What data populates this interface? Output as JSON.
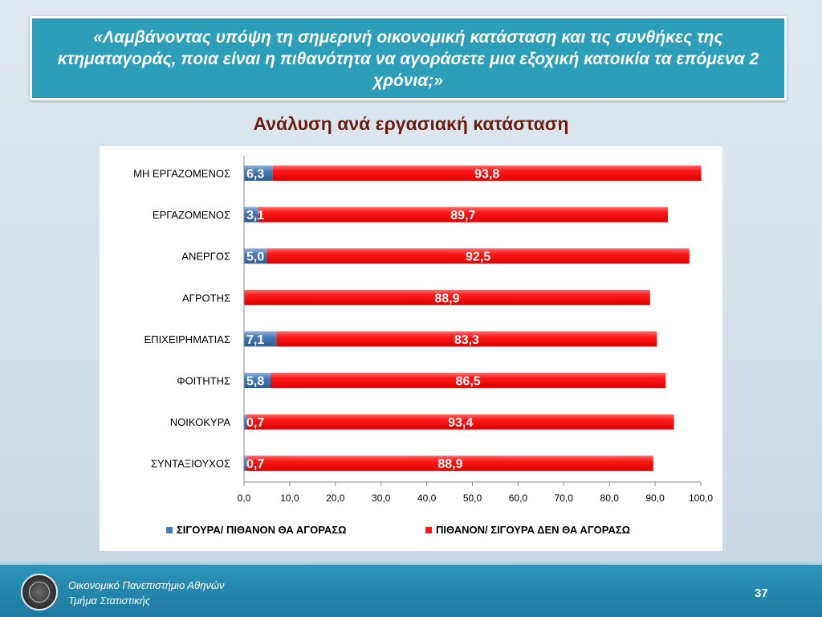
{
  "slide": {
    "question": "«Λαμβάνοντας υπόψη τη σημερινή οικονομική κατάσταση και τις συνθήκες της κτηματαγοράς, ποια είναι η πιθανότητα να αγοράσετε μια εξοχική κατοικία τα επόμενα 2 χρόνια;»",
    "subtitle": "Ανάλυση ανά εργασιακή κατάσταση",
    "footer_line1": "Οικονομικό Πανεπιστήμιο Αθηνών",
    "footer_line2": "Τμήμα Στατιστικής",
    "page_number": "37"
  },
  "chart_data": {
    "type": "bar",
    "orientation": "horizontal",
    "stacked": true,
    "categories": [
      "ΜΗ ΕΡΓΑΖΟΜΕΝΟΣ",
      "ΕΡΓΑΖΟΜΕΝΟΣ",
      "ΑΝΕΡΓΟΣ",
      "ΑΓΡΟΤΗΣ",
      "ΕΠΙΧΕΙΡΗΜΑΤΙΑΣ",
      "ΦΟΙΤΗΤΗΣ",
      "ΝΟΙΚΟΚΥΡΑ",
      "ΣΥΝΤΑΞΙΟΥΧΟΣ"
    ],
    "series": [
      {
        "name": "ΣΙΓΟΥΡΑ/ ΠΙΘΑΝΟΝ ΘΑ ΑΓΟΡΑΣΩ",
        "color": "#4a78b5",
        "values": [
          6.3,
          3.1,
          5.0,
          0,
          7.1,
          5.8,
          0.7,
          0.7
        ],
        "labels": [
          "6,3",
          "3,1",
          "5,0",
          "",
          "7,1",
          "5,8",
          "0,7",
          "0,7"
        ]
      },
      {
        "name": "ΠΙΘΑΝΟΝ/ ΣΙΓΟΥΡΑ ΔΕΝ ΘΑ ΑΓΟΡΑΣΩ",
        "color": "#ff1a1a",
        "values": [
          93.8,
          89.7,
          92.5,
          88.9,
          83.3,
          86.5,
          93.4,
          88.9
        ],
        "labels": [
          "93,8",
          "89,7",
          "92,5",
          "88,9",
          "83,3",
          "86,5",
          "93,4",
          "88,9"
        ]
      }
    ],
    "xlim": [
      0,
      100
    ],
    "xticks": [
      "0,0",
      "10,0",
      "20,0",
      "30,0",
      "40,0",
      "50,0",
      "60,0",
      "70,0",
      "80,0",
      "90,0",
      "100,0"
    ],
    "legend_position": "bottom",
    "grid": false
  }
}
